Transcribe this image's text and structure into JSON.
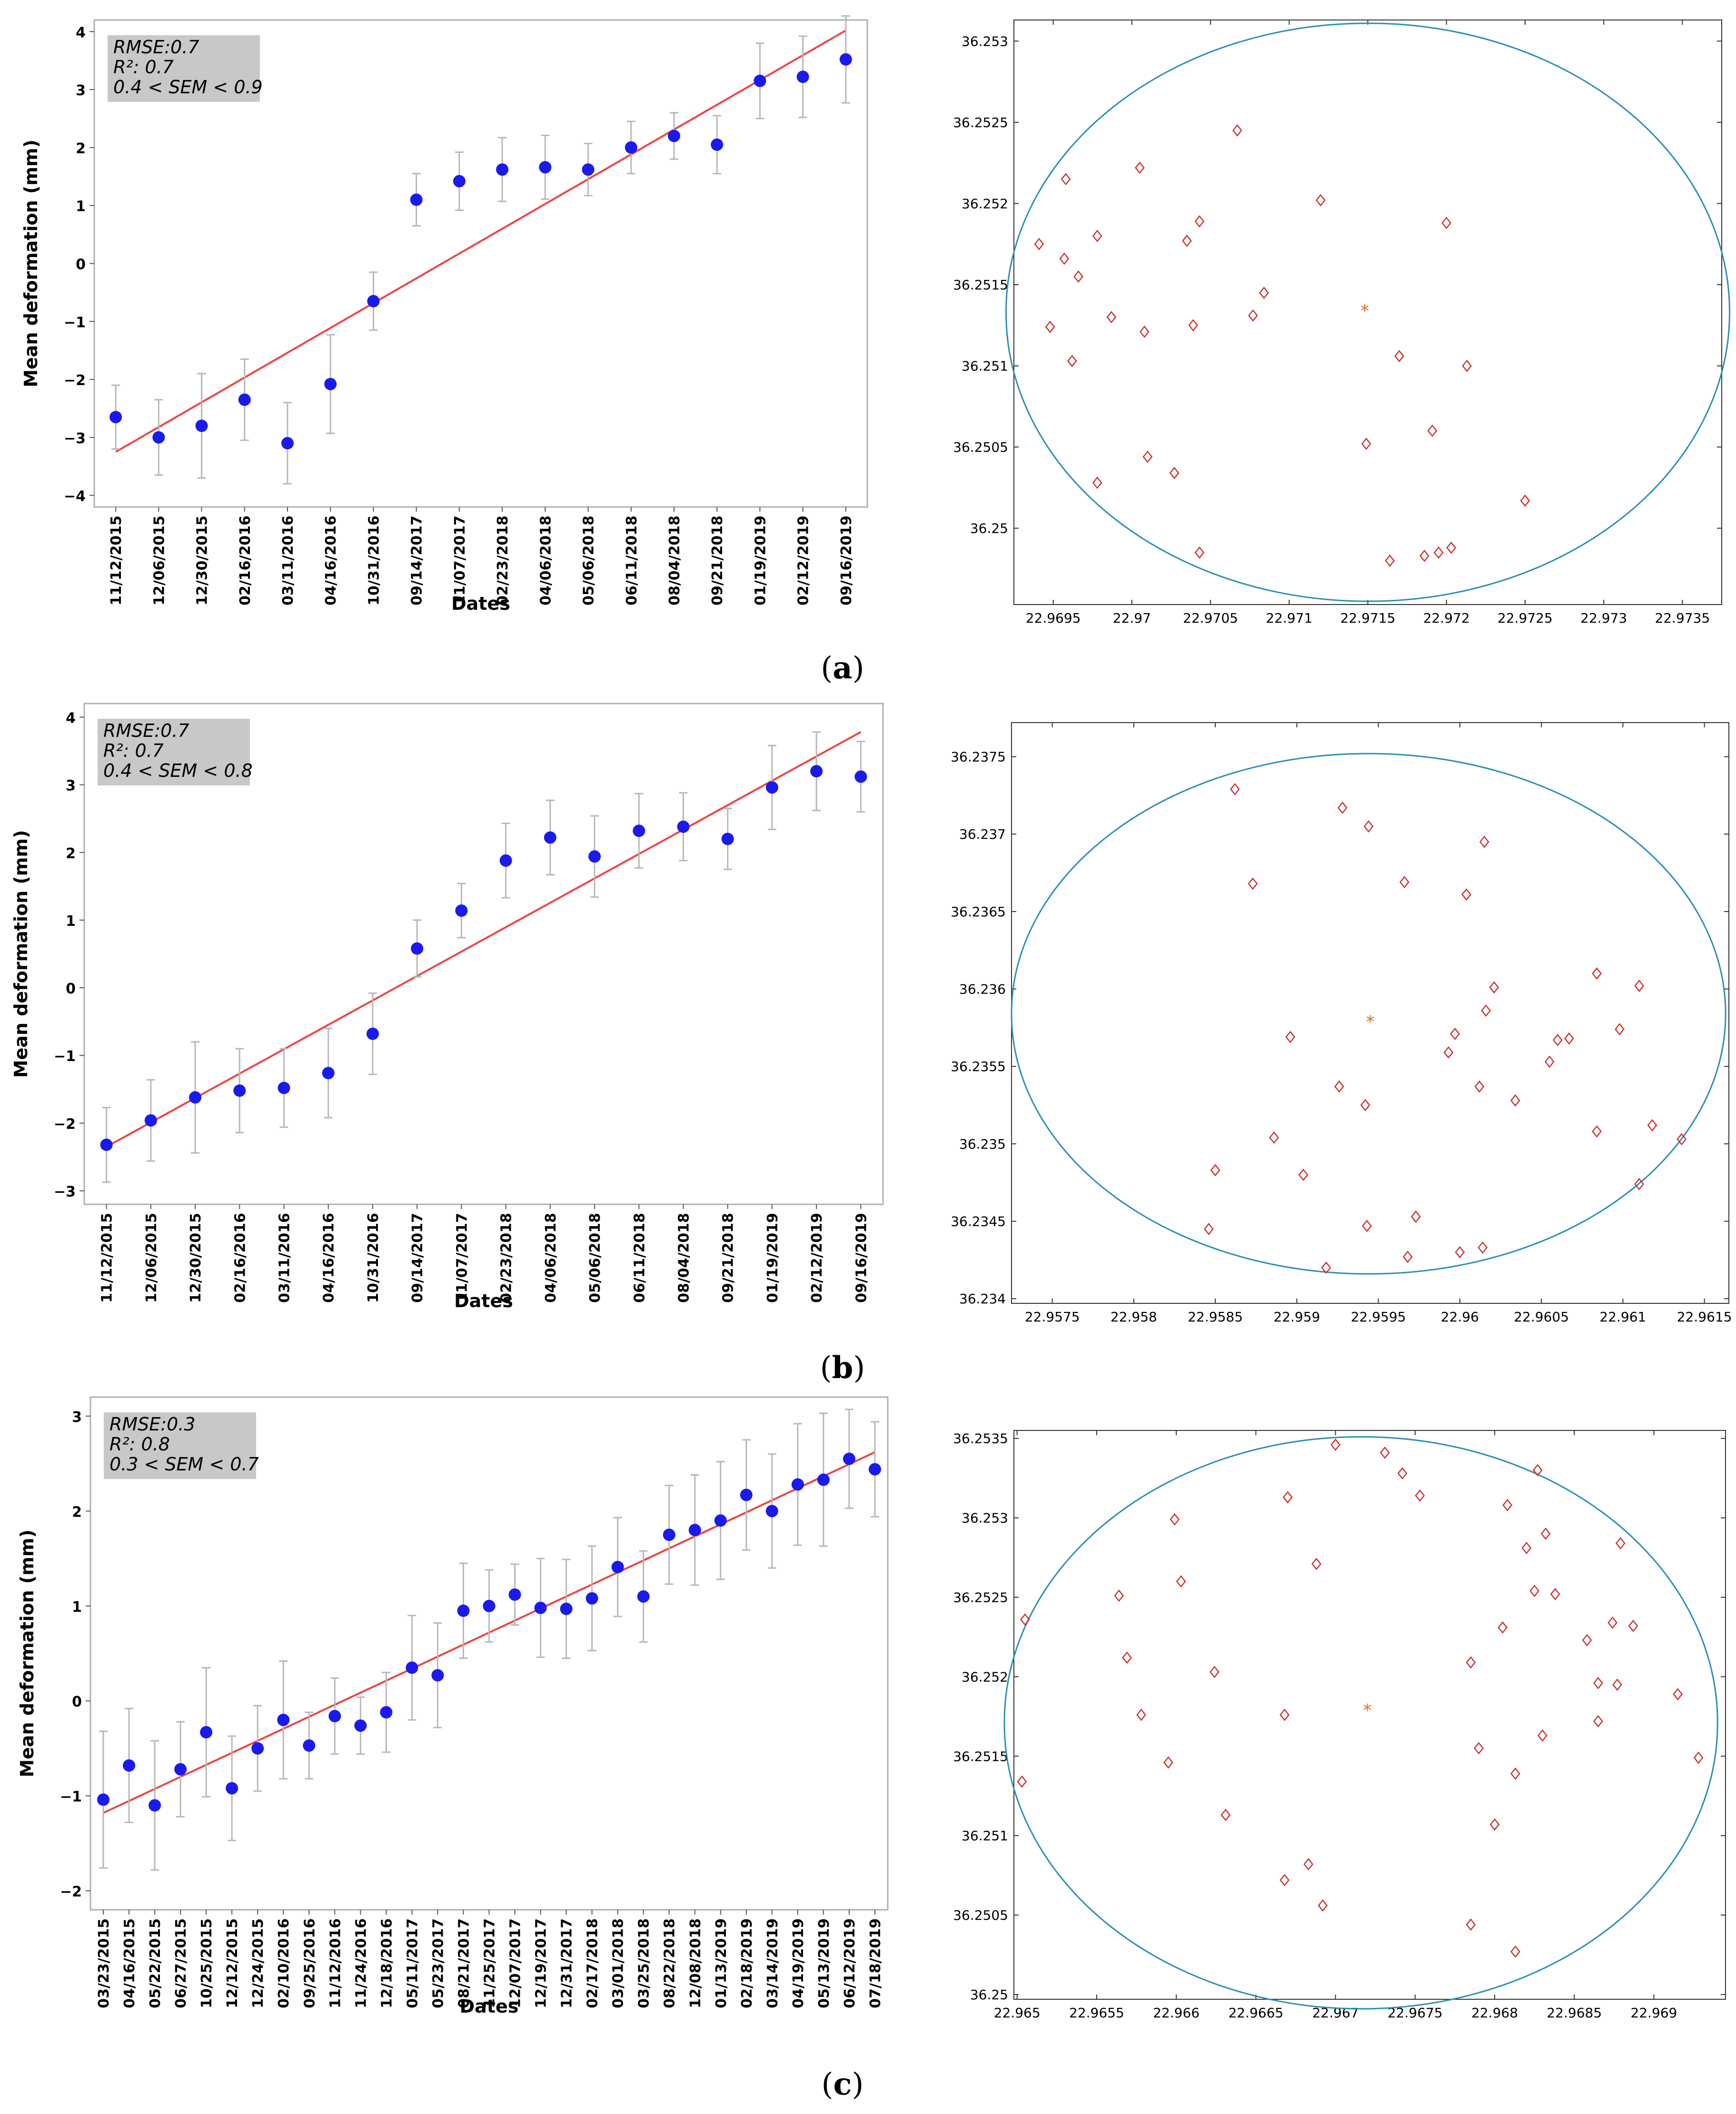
{
  "colors": {
    "point": "#1a1aee",
    "fit": "#ee4444",
    "error_bar": "#b8b8b8",
    "stats_box": "#c8c8c8",
    "circle": "#2a8fb0",
    "scatter": "#cc3333",
    "center": "#e07020"
  },
  "chart_data": [
    {
      "panel": "a-left",
      "type": "scatter",
      "xlabel": "Dates",
      "ylabel": "Mean deformation (mm)",
      "ylim": [
        -4.2,
        4.2
      ],
      "yticks": [
        "−4",
        "−3",
        "−2",
        "−1",
        "0",
        "1",
        "2",
        "3",
        "4"
      ],
      "categories": [
        "11/12/2015",
        "12/06/2015",
        "12/30/2015",
        "02/16/2016",
        "03/11/2016",
        "04/16/2016",
        "10/31/2016",
        "09/14/2017",
        "11/07/2017",
        "02/23/2018",
        "04/06/2018",
        "05/06/2018",
        "06/11/2018",
        "08/04/2018",
        "09/21/2018",
        "01/19/2019",
        "02/12/2019",
        "09/16/2019"
      ],
      "values": [
        -2.65,
        -3.0,
        -2.8,
        -2.35,
        -3.1,
        -2.08,
        -0.65,
        1.1,
        1.42,
        1.62,
        1.66,
        1.62,
        2.0,
        2.2,
        2.05,
        3.15,
        3.22,
        3.52
      ],
      "errors": [
        0.55,
        0.65,
        0.9,
        0.7,
        0.7,
        0.85,
        0.5,
        0.45,
        0.5,
        0.55,
        0.55,
        0.45,
        0.45,
        0.4,
        0.5,
        0.65,
        0.7,
        0.75
      ],
      "fit": [
        -3.25,
        4.02
      ],
      "stats": [
        "RMSE:0.7",
        "R²: 0.7",
        "0.4 < SEM < 0.9"
      ]
    },
    {
      "panel": "b-left",
      "type": "scatter",
      "xlabel": "Dates",
      "ylabel": "Mean deformation (mm)",
      "ylim": [
        -3.2,
        4.2
      ],
      "yticks": [
        "−3",
        "−2",
        "−1",
        "0",
        "1",
        "2",
        "3",
        "4"
      ],
      "categories": [
        "11/12/2015",
        "12/06/2015",
        "12/30/2015",
        "02/16/2016",
        "03/11/2016",
        "04/16/2016",
        "10/31/2016",
        "09/14/2017",
        "11/07/2017",
        "02/23/2018",
        "04/06/2018",
        "05/06/2018",
        "06/11/2018",
        "08/04/2018",
        "09/21/2018",
        "01/19/2019",
        "02/12/2019",
        "09/16/2019"
      ],
      "values": [
        -2.32,
        -1.96,
        -1.62,
        -1.52,
        -1.48,
        -1.26,
        -0.68,
        0.58,
        1.14,
        1.88,
        2.22,
        1.94,
        2.32,
        2.38,
        2.2,
        2.96,
        3.2,
        3.12
      ],
      "errors": [
        0.55,
        0.6,
        0.82,
        0.62,
        0.58,
        0.66,
        0.6,
        0.42,
        0.4,
        0.55,
        0.55,
        0.6,
        0.55,
        0.5,
        0.45,
        0.62,
        0.58,
        0.52
      ],
      "fit": [
        -2.35,
        3.78
      ],
      "stats": [
        "RMSE:0.7",
        "R²: 0.7",
        "0.4 < SEM < 0.8"
      ]
    },
    {
      "panel": "c-left",
      "type": "scatter",
      "xlabel": "Dates",
      "ylabel": "Mean deformation (mm)",
      "ylim": [
        -2.2,
        3.2
      ],
      "yticks": [
        "−2",
        "−1",
        "0",
        "1",
        "2",
        "3"
      ],
      "categories": [
        "03/23/2015",
        "04/16/2015",
        "05/22/2015",
        "06/27/2015",
        "10/25/2015",
        "12/12/2015",
        "12/24/2015",
        "02/10/2016",
        "09/25/2016",
        "11/12/2016",
        "11/24/2016",
        "12/18/2016",
        "05/11/2017",
        "05/23/2017",
        "08/21/2017",
        "11/25/2017",
        "12/07/2017",
        "12/19/2017",
        "12/31/2017",
        "02/17/2018",
        "03/01/2018",
        "03/25/2018",
        "08/22/2018",
        "12/08/2018",
        "01/13/2019",
        "02/18/2019",
        "03/14/2019",
        "04/19/2019",
        "05/13/2019",
        "06/12/2019",
        "07/18/2019"
      ],
      "values": [
        -1.04,
        -0.68,
        -1.1,
        -0.72,
        -0.33,
        -0.92,
        -0.5,
        -0.2,
        -0.47,
        -0.16,
        -0.26,
        -0.12,
        0.35,
        0.27,
        0.95,
        1.0,
        1.12,
        0.98,
        0.97,
        1.08,
        1.41,
        1.1,
        1.75,
        1.8,
        1.9,
        2.17,
        2.0,
        2.28,
        2.33,
        2.55,
        2.44
      ],
      "errors": [
        0.72,
        0.6,
        0.68,
        0.5,
        0.68,
        0.55,
        0.45,
        0.62,
        0.35,
        0.4,
        0.3,
        0.42,
        0.55,
        0.55,
        0.5,
        0.38,
        0.32,
        0.52,
        0.52,
        0.55,
        0.52,
        0.48,
        0.52,
        0.58,
        0.62,
        0.58,
        0.6,
        0.64,
        0.7,
        0.52,
        0.5
      ],
      "fit": [
        -1.18,
        2.62
      ],
      "stats": [
        "RMSE:0.3",
        "R²: 0.8",
        "0.3 < SEM < 0.7"
      ]
    },
    {
      "panel": "a-right",
      "type": "scatter",
      "xlim": [
        22.96925,
        22.97375
      ],
      "ylim": [
        36.24953,
        36.25313
      ],
      "xticks": [
        22.9695,
        22.97,
        22.9705,
        22.971,
        22.9715,
        22.972,
        22.9725,
        22.973,
        22.9735
      ],
      "xtick_labels": [
        "22.9695",
        "22.97",
        "22.9705",
        "22.971",
        "22.9715",
        "22.972",
        "22.9725",
        "22.973",
        "22.9735"
      ],
      "yticks": [
        36.25,
        36.2505,
        36.251,
        36.2515,
        36.252,
        36.2525,
        36.253
      ],
      "ytick_labels": [
        "36.25",
        "36.2505",
        "36.251",
        "36.2515",
        "36.252",
        "36.2525",
        "36.253"
      ],
      "ellipse": {
        "cx": 22.9715,
        "cy": 36.25133,
        "rx": 0.0023,
        "ry": 0.00178
      },
      "center": [
        22.97148,
        36.25135
      ],
      "points": [
        [
          22.96941,
          36.25175
        ],
        [
          22.96948,
          36.25124
        ],
        [
          22.96958,
          36.25215
        ],
        [
          22.96957,
          36.25166
        ],
        [
          22.96962,
          36.25103
        ],
        [
          22.96966,
          36.25155
        ],
        [
          22.96978,
          36.2518
        ],
        [
          22.96978,
          36.25028
        ],
        [
          22.96987,
          36.2513
        ],
        [
          22.97005,
          36.25222
        ],
        [
          22.97008,
          36.25121
        ],
        [
          22.9701,
          36.25044
        ],
        [
          22.97027,
          36.25034
        ],
        [
          22.97035,
          36.25177
        ],
        [
          22.97039,
          36.25125
        ],
        [
          22.97043,
          36.25189
        ],
        [
          22.97043,
          36.24985
        ],
        [
          22.97067,
          36.25245
        ],
        [
          22.97077,
          36.25131
        ],
        [
          22.97084,
          36.25145
        ],
        [
          22.9712,
          36.25202
        ],
        [
          22.97149,
          36.25052
        ],
        [
          22.97164,
          36.2498
        ],
        [
          22.9717,
          36.25106
        ],
        [
          22.97186,
          36.24983
        ],
        [
          22.97191,
          36.2506
        ],
        [
          22.97195,
          36.24985
        ],
        [
          22.972,
          36.25188
        ],
        [
          22.97203,
          36.24988
        ],
        [
          22.97213,
          36.251
        ],
        [
          22.9725,
          36.25017
        ]
      ]
    },
    {
      "panel": "b-right",
      "type": "scatter",
      "xlim": [
        22.95725,
        22.96165
      ],
      "ylim": [
        36.23397,
        36.23772
      ],
      "xticks": [
        22.9575,
        22.958,
        22.9585,
        22.959,
        22.9595,
        22.96,
        22.9605,
        22.961,
        22.9615
      ],
      "xtick_labels": [
        "22.9575",
        "22.958",
        "22.9585",
        "22.959",
        "22.9595",
        "22.96",
        "22.9605",
        "22.961",
        "22.9615"
      ],
      "yticks": [
        36.234,
        36.2345,
        36.235,
        36.2355,
        36.236,
        36.2365,
        36.237,
        36.2375
      ],
      "ytick_labels": [
        "36.234",
        "36.2345",
        "36.235",
        "36.2355",
        "36.236",
        "36.2365",
        "36.237",
        "36.2375"
      ],
      "ellipse": {
        "cx": 22.95944,
        "cy": 36.23584,
        "rx": 0.00219,
        "ry": 0.00168
      },
      "center": [
        22.95945,
        36.2358
      ],
      "points": [
        [
          22.95862,
          36.23729
        ],
        [
          22.95873,
          36.23668
        ],
        [
          22.95928,
          36.23717
        ],
        [
          22.95944,
          36.23705
        ],
        [
          22.95966,
          36.23669
        ],
        [
          22.96004,
          36.23661
        ],
        [
          22.96015,
          36.23695
        ],
        [
          22.95846,
          36.23445
        ],
        [
          22.9585,
          36.23483
        ],
        [
          22.95886,
          36.23504
        ],
        [
          22.95896,
          36.23569
        ],
        [
          22.95904,
          36.2348
        ],
        [
          22.95918,
          36.2342
        ],
        [
          22.95926,
          36.23537
        ],
        [
          22.95942,
          36.23525
        ],
        [
          22.95943,
          36.23447
        ],
        [
          22.95968,
          36.23427
        ],
        [
          22.95973,
          36.23453
        ],
        [
          22.95993,
          36.23559
        ],
        [
          22.95997,
          36.23571
        ],
        [
          22.96,
          36.2343
        ],
        [
          22.96012,
          36.23537
        ],
        [
          22.96014,
          36.23433
        ],
        [
          22.96016,
          36.23586
        ],
        [
          22.96021,
          36.23601
        ],
        [
          22.96034,
          36.23528
        ],
        [
          22.96055,
          36.23553
        ],
        [
          22.9606,
          36.23567
        ],
        [
          22.96067,
          36.23568
        ],
        [
          22.96084,
          36.2361
        ],
        [
          22.96084,
          36.23508
        ],
        [
          22.96098,
          36.23574
        ],
        [
          22.9611,
          36.23602
        ],
        [
          22.9611,
          36.23474
        ],
        [
          22.96118,
          36.23512
        ],
        [
          22.96136,
          36.23503
        ]
      ]
    },
    {
      "panel": "c-right",
      "type": "scatter",
      "xlim": [
        22.96498,
        22.96945
      ],
      "ylim": [
        36.24997,
        36.25355
      ],
      "xticks": [
        22.965,
        22.9655,
        22.966,
        22.9665,
        22.967,
        22.9675,
        22.968,
        22.9685,
        22.969
      ],
      "xtick_labels": [
        "22.965",
        "22.9655",
        "22.966",
        "22.9665",
        "22.967",
        "22.9675",
        "22.968",
        "22.9685",
        "22.969"
      ],
      "yticks": [
        36.25,
        36.2505,
        36.251,
        36.2515,
        36.252,
        36.2525,
        36.253,
        36.2535
      ],
      "ytick_labels": [
        "36.25",
        "36.2505",
        "36.251",
        "36.2515",
        "36.252",
        "36.2525",
        "36.253",
        "36.2535"
      ],
      "ellipse": {
        "cx": 22.96716,
        "cy": 36.25171,
        "rx": 0.00224,
        "ry": 0.0018
      },
      "center": [
        22.9672,
        36.2518
      ],
      "points": [
        [
          22.96505,
          36.25236
        ],
        [
          22.96503,
          36.25134
        ],
        [
          22.96564,
          36.25251
        ],
        [
          22.96569,
          36.25212
        ],
        [
          22.96578,
          36.25176
        ],
        [
          22.96595,
          36.25146
        ],
        [
          22.96599,
          36.25299
        ],
        [
          22.96603,
          36.2526
        ],
        [
          22.96624,
          36.25203
        ],
        [
          22.96631,
          36.25113
        ],
        [
          22.96668,
          36.25176
        ],
        [
          22.9667,
          36.25313
        ],
        [
          22.96668,
          36.25072
        ],
        [
          22.96683,
          36.25082
        ],
        [
          22.96688,
          36.25271
        ],
        [
          22.96692,
          36.25056
        ],
        [
          22.967,
          36.25346
        ],
        [
          22.96731,
          36.25341
        ],
        [
          22.96742,
          36.25328
        ],
        [
          22.96753,
          36.25314
        ],
        [
          22.96785,
          36.25209
        ],
        [
          22.96785,
          36.25044
        ],
        [
          22.9679,
          36.25155
        ],
        [
          22.968,
          36.25107
        ],
        [
          22.96805,
          36.25231
        ],
        [
          22.96808,
          36.25308
        ],
        [
          22.96813,
          36.25139
        ],
        [
          22.96813,
          36.25027
        ],
        [
          22.9682,
          36.25281
        ],
        [
          22.96825,
          36.25254
        ],
        [
          22.96827,
          36.2533
        ],
        [
          22.9683,
          36.25163
        ],
        [
          22.96832,
          36.2529
        ],
        [
          22.96838,
          36.25252
        ],
        [
          22.96858,
          36.25223
        ],
        [
          22.96865,
          36.25196
        ],
        [
          22.96865,
          36.25172
        ],
        [
          22.96874,
          36.25234
        ],
        [
          22.96877,
          36.25195
        ],
        [
          22.96879,
          36.25284
        ],
        [
          22.96887,
          36.25232
        ],
        [
          22.96915,
          36.25189
        ],
        [
          22.96928,
          36.25149
        ]
      ]
    }
  ],
  "panel_labels": [
    "(a)",
    "(b)",
    "(c)"
  ]
}
